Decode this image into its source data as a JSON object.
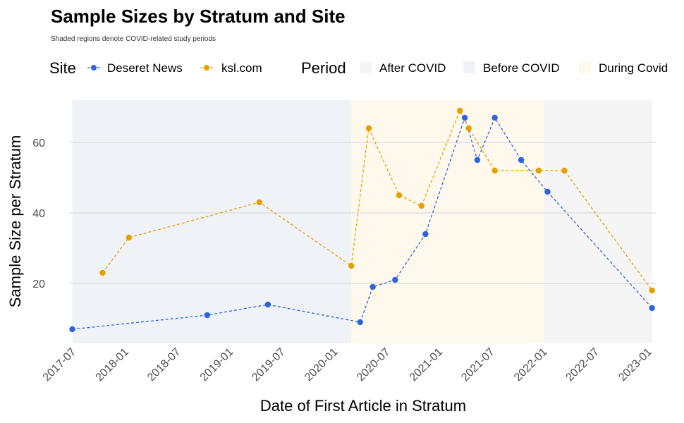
{
  "chart_data": {
    "type": "line",
    "title": "Sample Sizes by Stratum and Site",
    "subtitle": "Shaded regions denote COVID-related study periods",
    "xlabel": "Date of First Article in Stratum",
    "ylabel": "Sample Size per Stratum",
    "x_ticks": [
      "2017-07",
      "2018-01",
      "2018-07",
      "2019-01",
      "2019-07",
      "2020-01",
      "2020-07",
      "2021-01",
      "2021-07",
      "2022-01",
      "2022-07",
      "2023-01"
    ],
    "y_ticks": [
      20,
      40,
      60
    ],
    "xlim": [
      "2017-06-20",
      "2023-01-28"
    ],
    "ylim": [
      3,
      72
    ],
    "grid": true,
    "legend_placement": "top",
    "legend_site_title": "Site",
    "legend_period_title": "Period",
    "periods": [
      {
        "name": "After COVID",
        "start": "2022-01-01",
        "end": "2023-01-15",
        "color": "#f5f5f5"
      },
      {
        "name": "Before COVID",
        "start": "2017-07-01",
        "end": "2020-03-01",
        "color": "#eff2f7"
      },
      {
        "name": "During Covid",
        "start": "2020-03-01",
        "end": "2022-01-01",
        "color": "#fef9ec"
      }
    ],
    "series": [
      {
        "name": "Deseret News",
        "color": "#2f62e0",
        "points": [
          {
            "x": "2017-07-01",
            "y": 7
          },
          {
            "x": "2018-10-15",
            "y": 11
          },
          {
            "x": "2019-05-15",
            "y": 14
          },
          {
            "x": "2020-04-01",
            "y": 9
          },
          {
            "x": "2020-05-15",
            "y": 19
          },
          {
            "x": "2020-08-01",
            "y": 21
          },
          {
            "x": "2020-11-15",
            "y": 34
          },
          {
            "x": "2021-04-01",
            "y": 67
          },
          {
            "x": "2021-05-15",
            "y": 55
          },
          {
            "x": "2021-07-15",
            "y": 67
          },
          {
            "x": "2021-10-15",
            "y": 55
          },
          {
            "x": "2022-01-15",
            "y": 46
          },
          {
            "x": "2023-01-15",
            "y": 13
          }
        ]
      },
      {
        "name": "ksl.com",
        "color": "#e69f00",
        "points": [
          {
            "x": "2017-10-15",
            "y": 23
          },
          {
            "x": "2018-01-15",
            "y": 33
          },
          {
            "x": "2019-04-15",
            "y": 43
          },
          {
            "x": "2020-03-01",
            "y": 25
          },
          {
            "x": "2020-05-01",
            "y": 64
          },
          {
            "x": "2020-08-15",
            "y": 45
          },
          {
            "x": "2020-11-01",
            "y": 42
          },
          {
            "x": "2021-03-15",
            "y": 69
          },
          {
            "x": "2021-04-15",
            "y": 64
          },
          {
            "x": "2021-07-15",
            "y": 52
          },
          {
            "x": "2021-12-15",
            "y": 52
          },
          {
            "x": "2022-03-15",
            "y": 52
          },
          {
            "x": "2023-01-15",
            "y": 18
          }
        ]
      }
    ]
  }
}
